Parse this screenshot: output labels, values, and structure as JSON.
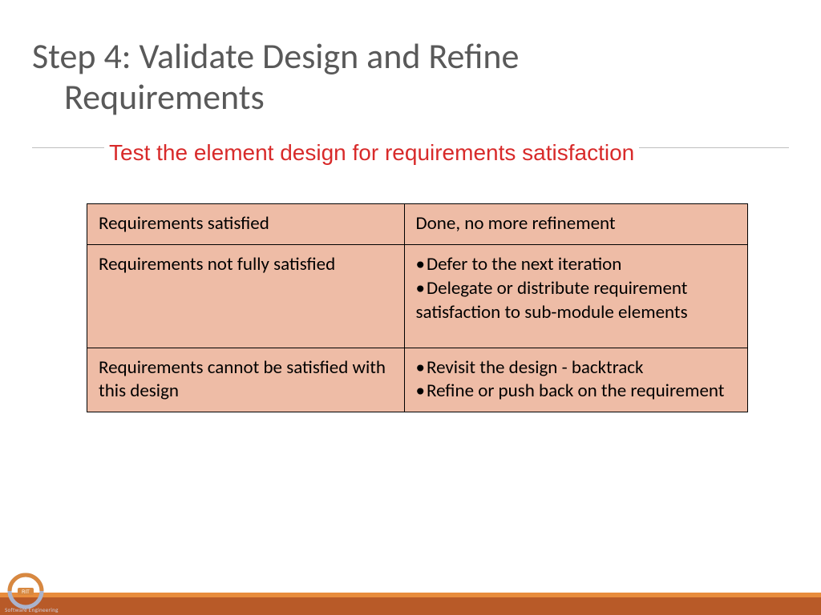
{
  "title": {
    "line1": "Step 4: Validate Design and Refine",
    "line2": "Requirements"
  },
  "subtitle": "Test the element design for requirements satisfaction",
  "table": {
    "bg_color": "#eebca6",
    "border_color": "#000000",
    "rows": [
      {
        "left": "Requirements satisfied",
        "right_type": "text",
        "right": "Done, no more refinement"
      },
      {
        "left": "Requirements not fully satisfied",
        "right_type": "list",
        "right_items": [
          "Defer to the next iteration",
          "Delegate or distribute  requirement satisfaction to sub-module elements"
        ],
        "right_pad_bottom": 28
      },
      {
        "left": "Requirements cannot be satisfied with this design",
        "right_type": "list",
        "right_items": [
          "Revisit the design -  backtrack",
          "Refine or push back on the requirement"
        ]
      }
    ]
  },
  "footer": {
    "top_color": "#e88c3c",
    "bottom_color": "#b85a28",
    "logo_badge": "RIT",
    "logo_caption": "Software Engineering"
  },
  "colors": {
    "title": "#595959",
    "subtitle": "#d82a2a",
    "divider": "#bfbfbf"
  }
}
